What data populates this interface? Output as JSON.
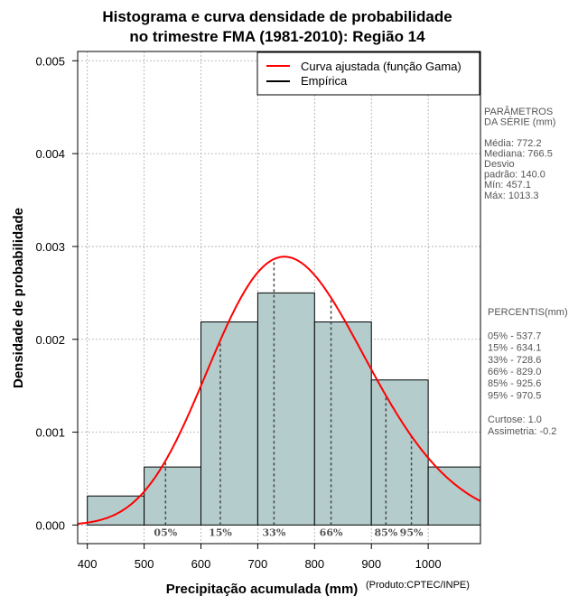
{
  "chart_data": {
    "type": "bar",
    "title_lines": [
      "Histograma e curva densidade de probabilidade",
      "no trimestre FMA (1981-2010): Região 14"
    ],
    "xlabel": "Precipitação acumulada (mm)",
    "ylabel": "Densidade de probabilidade",
    "credit": "(Produto:CPTEC/INPE)",
    "xlim": [
      383,
      1092
    ],
    "ylim": [
      -0.0002,
      0.0051
    ],
    "x_ticks": [
      400,
      500,
      600,
      700,
      800,
      900,
      1000
    ],
    "y_ticks": [
      0.0,
      0.001,
      0.002,
      0.003,
      0.004,
      0.005
    ],
    "y_tick_labels": [
      "0.000",
      "0.001",
      "0.002",
      "0.003",
      "0.004",
      "0.005"
    ],
    "bins": [
      {
        "from": 400,
        "to": 500,
        "density": 0.000313
      },
      {
        "from": 500,
        "to": 600,
        "density": 0.000625
      },
      {
        "from": 600,
        "to": 700,
        "density": 0.002188
      },
      {
        "from": 700,
        "to": 800,
        "density": 0.0025
      },
      {
        "from": 800,
        "to": 900,
        "density": 0.002188
      },
      {
        "from": 900,
        "to": 1000,
        "density": 0.001563
      },
      {
        "from": 1000,
        "to": 1100,
        "density": 0.000625
      }
    ],
    "gamma_curve": {
      "mean": 772.2,
      "sd": 140.0,
      "peak": 0.00289
    },
    "percentile_markers": [
      {
        "label": "05%",
        "x": 537.7
      },
      {
        "label": "15%",
        "x": 634.1
      },
      {
        "label": "33%",
        "x": 728.6
      },
      {
        "label": "66%",
        "x": 829.0
      },
      {
        "label": "85%",
        "x": 925.6
      },
      {
        "label": "95%",
        "x": 970.5
      }
    ],
    "legend": {
      "position": "top-right",
      "entries": [
        {
          "label": "Curva ajustada (função Gama)",
          "color": "#ff0000"
        },
        {
          "label": "Empírica",
          "color": "#000000"
        }
      ]
    },
    "colors": {
      "bar_fill": "#b4cccc",
      "curve": "#ff0000",
      "grid": "#a9a9a9"
    }
  },
  "params_panel": {
    "lines": [
      "PARÂMETROS",
      " DA SÉRIE (mm)",
      "",
      "Média:  772.2",
      "Mediana:  766.5",
      "Desvio",
      "padrão:  140.0",
      "Mín:  457.1",
      "Máx:  1013.3"
    ]
  },
  "percentiles_panel": {
    "lines": [
      " PERCENTIS(mm)",
      "",
      "05% -   537.7",
      "15% -   634.1",
      "33% -   728.6",
      "66% -   829.0",
      "85% -   925.6",
      "95% -   970.5",
      "",
      "Curtose:  1.0",
      "Assimetria:  -0.2"
    ]
  }
}
